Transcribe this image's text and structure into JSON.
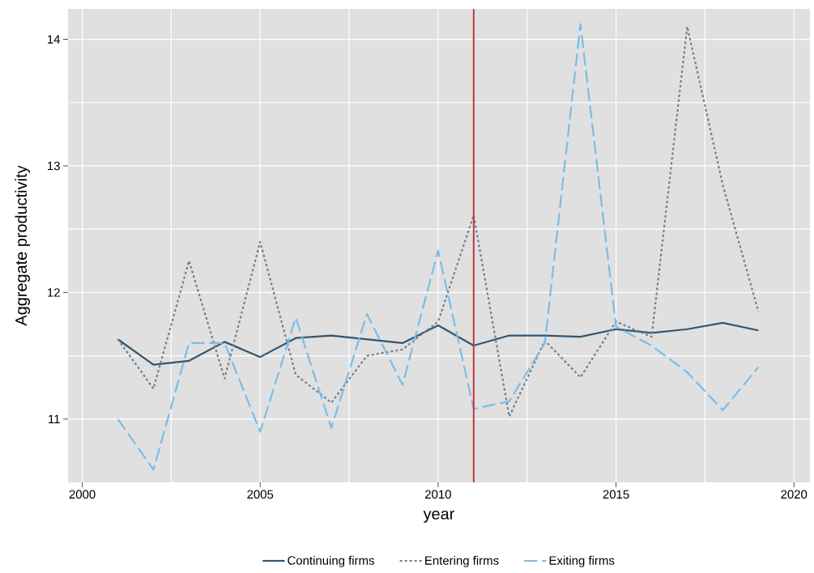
{
  "chart_data": {
    "type": "line",
    "xlabel": "year",
    "ylabel": "Aggregate productivity",
    "x": [
      2001,
      2002,
      2003,
      2004,
      2005,
      2006,
      2007,
      2008,
      2009,
      2010,
      2011,
      2012,
      2013,
      2014,
      2015,
      2016,
      2017,
      2018,
      2019
    ],
    "series": [
      {
        "name": "Continuing firms",
        "color": "#34566e",
        "line_style": "solid",
        "values": [
          11.63,
          11.43,
          11.46,
          11.61,
          11.49,
          11.64,
          11.66,
          11.63,
          11.6,
          11.74,
          11.58,
          11.66,
          11.66,
          11.65,
          11.71,
          11.68,
          11.71,
          11.76,
          11.7
        ]
      },
      {
        "name": "Entering firms",
        "color": "#6f7e91",
        "line_style": "dotted",
        "values": [
          11.63,
          11.24,
          12.25,
          11.32,
          12.4,
          11.35,
          11.13,
          11.5,
          11.55,
          11.77,
          12.61,
          11.02,
          11.62,
          11.33,
          11.77,
          11.65,
          14.1,
          12.85,
          11.85
        ]
      },
      {
        "name": "Exiting firms",
        "color": "#79bde8",
        "line_style": "dashed",
        "values": [
          11.0,
          10.6,
          11.6,
          11.6,
          10.9,
          11.8,
          10.93,
          11.83,
          11.27,
          12.33,
          11.08,
          11.14,
          11.6,
          14.12,
          11.73,
          11.58,
          11.37,
          11.07,
          11.41
        ]
      }
    ],
    "xlim": [
      1999.6,
      2020.45
    ],
    "ylim": [
      10.5,
      14.24
    ],
    "xticks": [
      2000,
      2005,
      2010,
      2015,
      2020
    ],
    "yticks": [
      11,
      12,
      13,
      14
    ],
    "ref_lines": [
      {
        "axis": "x",
        "value": 2011,
        "color": "#c8343f"
      }
    ],
    "grid": true,
    "legend": "bottom"
  }
}
